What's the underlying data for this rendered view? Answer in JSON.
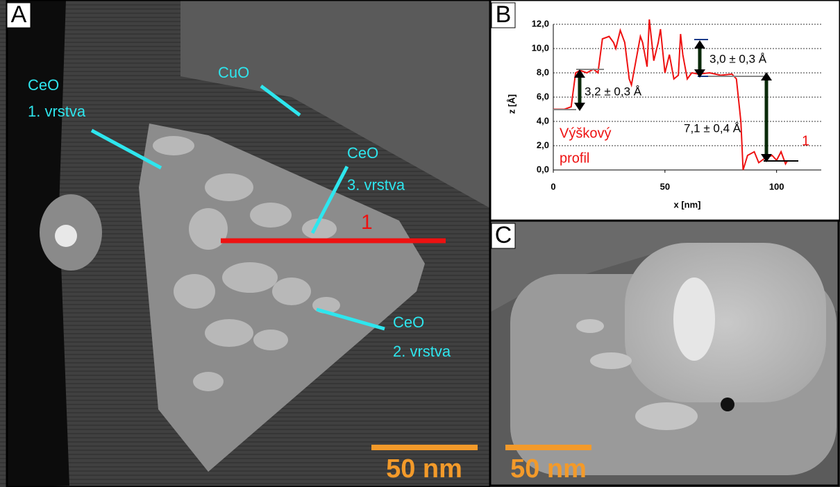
{
  "panel_a": {
    "label": "A",
    "texts": [
      "CeO",
      "1. vrstva",
      "CuO",
      "CeO",
      "3. vrstva",
      "1",
      "CeO",
      "2. vrstva"
    ],
    "scale_bar": "50 nm"
  },
  "chart_data": {
    "type": "line",
    "label": "B",
    "xlabel": "x [nm]",
    "ylabel": "z [Å]",
    "x": [
      0,
      5,
      8,
      10,
      12,
      15,
      18,
      20,
      22,
      25,
      27,
      28,
      30,
      32,
      34,
      35,
      37,
      39,
      40,
      42,
      43,
      45,
      47,
      48,
      50,
      52,
      54,
      56,
      57,
      58,
      60,
      62,
      65,
      70,
      75,
      80,
      82,
      84,
      85,
      87,
      90,
      92,
      95,
      98,
      100,
      102,
      104,
      105
    ],
    "series": [
      {
        "name": "1",
        "color": "#ee1111",
        "values": [
          5.0,
          5.0,
          5.2,
          8.0,
          8.2,
          8.0,
          8.3,
          8.0,
          10.8,
          11.0,
          10.5,
          10.0,
          11.5,
          10.5,
          7.5,
          7.0,
          9.0,
          11.0,
          10.5,
          8.5,
          12.4,
          9.0,
          10.5,
          11.6,
          8.0,
          9.5,
          7.5,
          7.8,
          11.2,
          9.5,
          7.5,
          8.0,
          7.9,
          8.0,
          7.8,
          7.9,
          7.5,
          4.0,
          0.0,
          1.2,
          1.5,
          0.6,
          1.0,
          1.2,
          0.8,
          1.5,
          0.5,
          0.8
        ]
      }
    ],
    "xlim": [
      0,
      120
    ],
    "xticks": [
      0,
      50,
      100
    ],
    "ylim": [
      0,
      12
    ],
    "yticks": [
      {
        "value": 0,
        "label": "0,0"
      },
      {
        "value": 2,
        "label": "2,0"
      },
      {
        "value": 4,
        "label": "4,0"
      },
      {
        "value": 6,
        "label": "6,0"
      },
      {
        "value": 8,
        "label": "8,0"
      },
      {
        "value": 10,
        "label": "10,0"
      },
      {
        "value": 12,
        "label": "12,0"
      }
    ],
    "grid": true,
    "annotations": [
      "3,0 ± 0,3 Å",
      "3,2 ± 0,3 Å",
      "7,1 ± 0,4 Å",
      "Výškový",
      "profil"
    ]
  },
  "panel_c": {
    "label": "C",
    "scale_bar": "50 nm"
  }
}
